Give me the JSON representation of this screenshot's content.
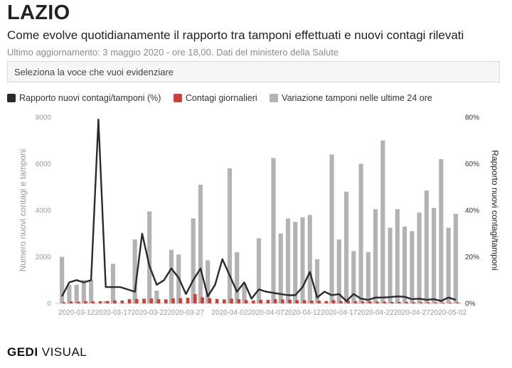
{
  "header": {
    "title": "LAZIO",
    "subtitle": "Come evolve quotidianamente il rapporto tra tamponi effettuati e nuovi contagi rilevati",
    "updated": "Ultimo aggiornamento: 3 maggio 2020 - ore 18,00. Dati del ministero della Salute"
  },
  "selector": {
    "placeholder": "Seleziona la voce che vuoi evidenziare"
  },
  "legend": {
    "items": [
      {
        "label": "Rapporto nuovi contagi/tamponi (%)",
        "color": "#2b2b2b"
      },
      {
        "label": "Contagi giornalieri",
        "color": "#c8423a"
      },
      {
        "label": "Variazione tamponi nelle ultime 24 ore",
        "color": "#b3b3b3"
      }
    ]
  },
  "footer": {
    "brand_bold": "GEDI",
    "brand_rest": " VISUAL"
  },
  "chart_data": {
    "type": "bar",
    "title": "",
    "ylabel": "Numero nuovi contagi e tamponi",
    "y2label": "Rapporto nuovi contagi/tamponi",
    "ylim": [
      0,
      8000
    ],
    "y2lim": [
      0,
      80
    ],
    "yticks": [
      0,
      2000,
      4000,
      6000,
      8000
    ],
    "y2ticks": [
      "0%",
      "20%",
      "40%",
      "60%",
      "80%"
    ],
    "xtick_labels": [
      "2020-03-12",
      "2020-03-17",
      "2020-03-22",
      "2020-03-27",
      "2020-04-02",
      "2020-04-07",
      "2020-04-12",
      "2020-04-17",
      "2020-04-22",
      "2020-04-27",
      "2020-05-02"
    ],
    "categories": [
      "2020-03-10",
      "2020-03-11",
      "2020-03-12",
      "2020-03-13",
      "2020-03-14",
      "2020-03-15",
      "2020-03-16",
      "2020-03-17",
      "2020-03-18",
      "2020-03-19",
      "2020-03-20",
      "2020-03-21",
      "2020-03-22",
      "2020-03-23",
      "2020-03-24",
      "2020-03-25",
      "2020-03-26",
      "2020-03-27",
      "2020-03-28",
      "2020-03-29",
      "2020-03-30",
      "2020-03-31",
      "2020-04-01",
      "2020-04-02",
      "2020-04-03",
      "2020-04-04",
      "2020-04-05",
      "2020-04-06",
      "2020-04-07",
      "2020-04-08",
      "2020-04-09",
      "2020-04-10",
      "2020-04-11",
      "2020-04-12",
      "2020-04-13",
      "2020-04-14",
      "2020-04-15",
      "2020-04-16",
      "2020-04-17",
      "2020-04-18",
      "2020-04-19",
      "2020-04-20",
      "2020-04-21",
      "2020-04-22",
      "2020-04-23",
      "2020-04-24",
      "2020-04-25",
      "2020-04-26",
      "2020-04-27",
      "2020-04-28",
      "2020-04-29",
      "2020-04-30",
      "2020-05-01",
      "2020-05-02",
      "2020-05-03"
    ],
    "series": [
      {
        "name": "Variazione tamponi nelle ultime 24 ore",
        "type": "bar",
        "color": "#b3b3b3",
        "values": [
          2000,
          800,
          800,
          1000,
          1000,
          0,
          100,
          1700,
          0,
          0,
          2750,
          0,
          3950,
          550,
          0,
          2300,
          2100,
          0,
          3650,
          5100,
          1850,
          0,
          0,
          5800,
          2200,
          850,
          0,
          2800,
          0,
          6250,
          3000,
          3650,
          3500,
          3700,
          3800,
          1900,
          0,
          6400,
          2750,
          4800,
          2250,
          6000,
          2200,
          4050,
          7000,
          3250,
          4050,
          3300,
          3100,
          3900,
          4850,
          4100,
          6200,
          3250,
          3850
        ]
      },
      {
        "name": "Contagi giornalieri",
        "type": "bar",
        "color": "#c8423a",
        "values": [
          50,
          80,
          70,
          90,
          80,
          90,
          100,
          130,
          120,
          180,
          190,
          200,
          210,
          180,
          170,
          210,
          220,
          240,
          400,
          260,
          220,
          190,
          170,
          200,
          180,
          140,
          120,
          150,
          150,
          180,
          170,
          160,
          140,
          140,
          120,
          110,
          100,
          140,
          100,
          120,
          90,
          80,
          80,
          70,
          70,
          60,
          60,
          60,
          50,
          50,
          40,
          40,
          30,
          30,
          40
        ]
      },
      {
        "name": "Rapporto nuovi contagi/tamponi (%)",
        "type": "line",
        "color": "#2b2b2b",
        "values": [
          3,
          9,
          10,
          9,
          10,
          79,
          7,
          7,
          7,
          6,
          5,
          30,
          16,
          8,
          10,
          15,
          11,
          4,
          10,
          15,
          3,
          8,
          19,
          12,
          5,
          9,
          2,
          6,
          5,
          4.5,
          4,
          3.5,
          3.5,
          7,
          13.5,
          2.5,
          5,
          3.5,
          4,
          1,
          4,
          2,
          1.5,
          2.5,
          2.5,
          2.7,
          3,
          2.8,
          1.8,
          2,
          1.5,
          1.8,
          1,
          2.5,
          1.5
        ]
      }
    ]
  }
}
